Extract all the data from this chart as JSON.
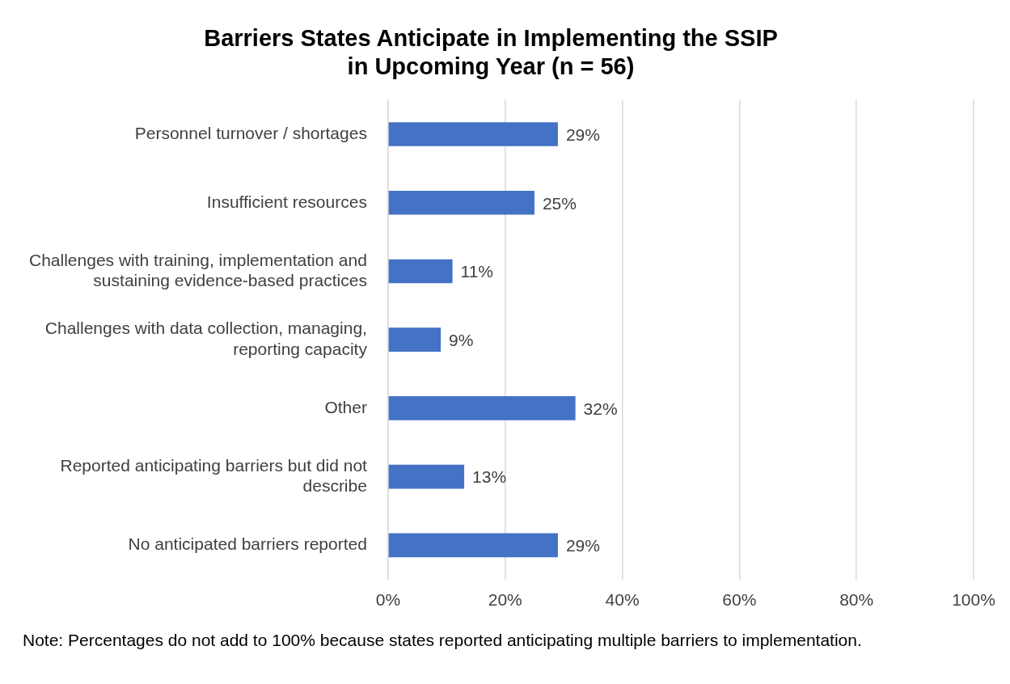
{
  "chart_data": {
    "type": "bar",
    "orientation": "horizontal",
    "title": "Barriers States Anticipate in Implementing the SSIP in Upcoming Year (n = 56)",
    "categories": [
      "Personnel turnover / shortages",
      "Insufficient resources",
      "Challenges with training, implementation and sustaining evidence-based practices",
      "Challenges with data collection, managing, reporting capacity",
      "Other",
      "Reported anticipating barriers but did not describe",
      "No anticipated barriers reported"
    ],
    "values": [
      29,
      25,
      11,
      9,
      32,
      13,
      29
    ],
    "value_labels": [
      "29%",
      "25%",
      "11%",
      "9%",
      "32%",
      "13%",
      "29%"
    ],
    "color": "#4472c4",
    "xlim": [
      0,
      100
    ],
    "xticks": [
      {
        "value": 0,
        "label": "0%"
      },
      {
        "value": 20,
        "label": "20%"
      },
      {
        "value": 40,
        "label": "40%"
      },
      {
        "value": 60,
        "label": "60%"
      },
      {
        "value": 80,
        "label": "80%"
      },
      {
        "value": 100,
        "label": "100%"
      }
    ],
    "grid": "x",
    "legend": false,
    "annotations": [
      "Note:  Percentages do not add to 100% because states reported anticipating multiple barriers to implementation."
    ]
  }
}
